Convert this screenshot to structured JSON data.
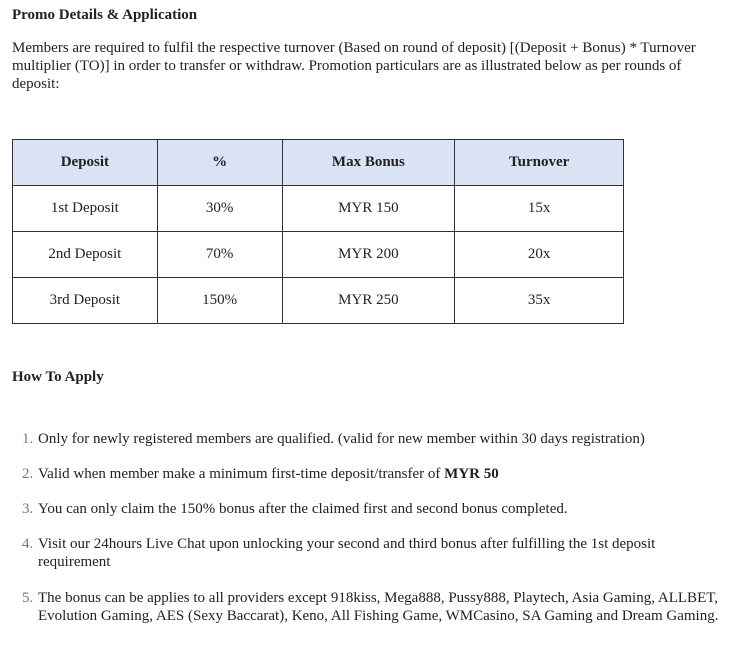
{
  "title": "Promo Details & Application",
  "intro": "Members are required to fulfil the respective turnover (Based on round of deposit) [(Deposit + Bonus) * Turnover multiplier (TO)] in order to transfer or withdraw. Promotion particulars are as illustrated below as per rounds of deposit:",
  "table": {
    "headers": [
      "Deposit",
      "%",
      "Max Bonus",
      "Turnover"
    ],
    "rows": [
      [
        "1st Deposit",
        "30%",
        "MYR 150",
        "15x"
      ],
      [
        "2nd Deposit",
        "70%",
        "MYR 200",
        "20x"
      ],
      [
        "3rd Deposit",
        "150%",
        "MYR 250",
        "35x"
      ]
    ]
  },
  "how_to_apply": "How To Apply",
  "steps": [
    {
      "num": "1.",
      "text": "Only for newly registered members are qualified. (valid for new member within 30 days registration)"
    },
    {
      "num": "2.",
      "text": "Valid when member make a minimum first-time deposit/transfer of ",
      "bold": "MYR 50"
    },
    {
      "num": "3.",
      "text": "You can only claim the 150% bonus after the claimed first and second bonus completed."
    },
    {
      "num": "4.",
      "text": "Visit our 24hours Live Chat upon unlocking your second and third bonus after fulfilling the 1st deposit requirement"
    },
    {
      "num": "5.",
      "text": "The bonus can be applies to all providers except 918kiss, Mega888, Pussy888, Playtech, Asia Gaming, ALLBET, Evolution Gaming, AES (Sexy Baccarat), Keno, All Fishing Game, WMCasino, SA Gaming and Dream Gaming."
    }
  ],
  "colors": {
    "header_bg": "#dae3f3"
  }
}
